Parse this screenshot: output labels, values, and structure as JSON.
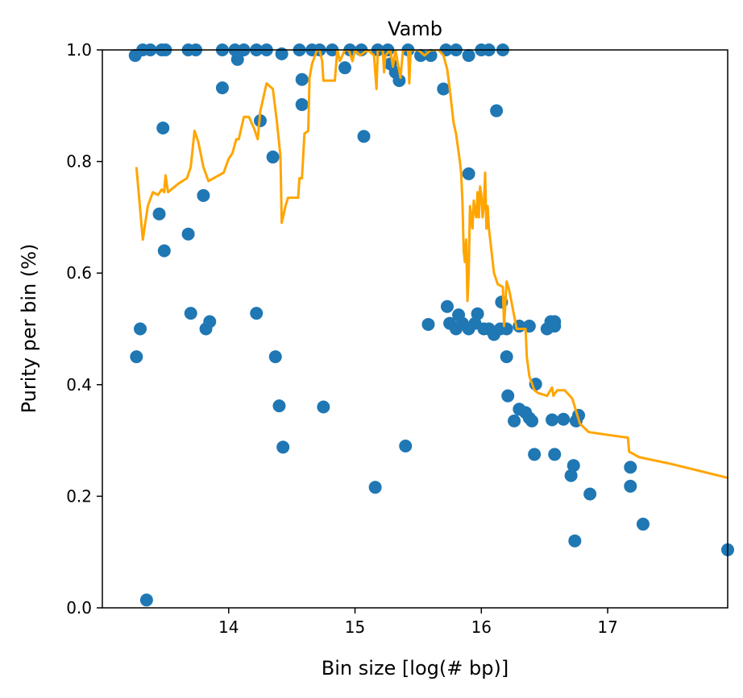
{
  "chart_data": {
    "type": "scatter",
    "title": "Vamb",
    "xlabel": "Bin size [log(# bp)]",
    "ylabel": "Purity per bin (%)",
    "xlim": [
      13.0,
      17.95
    ],
    "ylim": [
      0.0,
      1.0
    ],
    "xticks": [
      14,
      15,
      16,
      17
    ],
    "yticks": [
      0.0,
      0.2,
      0.4,
      0.6,
      0.8,
      1.0
    ],
    "xtick_labels": [
      "14",
      "15",
      "16",
      "17"
    ],
    "ytick_labels": [
      "0.0",
      "0.2",
      "0.4",
      "0.6",
      "0.8",
      "1.0"
    ],
    "grid": false,
    "series": [
      {
        "kind": "scatter",
        "color": "#1f77b4",
        "points": [
          [
            13.26,
            0.99
          ],
          [
            13.32,
            1.0
          ],
          [
            13.38,
            1.0
          ],
          [
            13.47,
            1.0
          ],
          [
            13.5,
            1.0
          ],
          [
            13.68,
            1.0
          ],
          [
            13.74,
            1.0
          ],
          [
            13.95,
            1.0
          ],
          [
            14.05,
            1.0
          ],
          [
            14.12,
            1.0
          ],
          [
            14.22,
            1.0
          ],
          [
            14.3,
            1.0
          ],
          [
            14.42,
            0.993
          ],
          [
            14.56,
            1.0
          ],
          [
            14.66,
            1.0
          ],
          [
            14.72,
            1.0
          ],
          [
            14.82,
            1.0
          ],
          [
            14.96,
            1.0
          ],
          [
            15.05,
            1.0
          ],
          [
            15.18,
            1.0
          ],
          [
            15.26,
            1.0
          ],
          [
            15.42,
            1.0
          ],
          [
            15.52,
            0.99
          ],
          [
            15.6,
            0.99
          ],
          [
            15.72,
            1.0
          ],
          [
            15.8,
            1.0
          ],
          [
            15.9,
            0.99
          ],
          [
            16.0,
            1.0
          ],
          [
            16.06,
            1.0
          ],
          [
            16.17,
            1.0
          ],
          [
            14.07,
            0.983
          ],
          [
            14.92,
            0.968
          ],
          [
            15.28,
            0.975
          ],
          [
            15.32,
            0.96
          ],
          [
            15.35,
            0.945
          ],
          [
            14.58,
            0.947
          ],
          [
            13.95,
            0.932
          ],
          [
            15.7,
            0.93
          ],
          [
            14.58,
            0.902
          ],
          [
            16.12,
            0.891
          ],
          [
            14.25,
            0.873
          ],
          [
            13.48,
            0.86
          ],
          [
            15.07,
            0.845
          ],
          [
            14.35,
            0.808
          ],
          [
            15.9,
            0.778
          ],
          [
            13.8,
            0.739
          ],
          [
            13.45,
            0.706
          ],
          [
            13.68,
            0.67
          ],
          [
            13.49,
            0.64
          ],
          [
            15.73,
            0.54
          ],
          [
            16.16,
            0.548
          ],
          [
            13.7,
            0.528
          ],
          [
            14.22,
            0.528
          ],
          [
            15.82,
            0.525
          ],
          [
            15.97,
            0.527
          ],
          [
            13.85,
            0.513
          ],
          [
            15.58,
            0.508
          ],
          [
            15.75,
            0.51
          ],
          [
            15.8,
            0.5
          ],
          [
            15.85,
            0.51
          ],
          [
            15.9,
            0.5
          ],
          [
            15.95,
            0.51
          ],
          [
            16.02,
            0.5
          ],
          [
            16.06,
            0.5
          ],
          [
            16.1,
            0.49
          ],
          [
            16.15,
            0.5
          ],
          [
            16.2,
            0.5
          ],
          [
            16.3,
            0.505
          ],
          [
            16.38,
            0.505
          ],
          [
            16.52,
            0.5
          ],
          [
            16.55,
            0.513
          ],
          [
            16.58,
            0.513
          ],
          [
            16.58,
            0.505
          ],
          [
            13.3,
            0.5
          ],
          [
            13.82,
            0.5
          ],
          [
            13.27,
            0.45
          ],
          [
            14.37,
            0.45
          ],
          [
            16.2,
            0.45
          ],
          [
            16.43,
            0.401
          ],
          [
            16.21,
            0.38
          ],
          [
            14.4,
            0.362
          ],
          [
            14.75,
            0.36
          ],
          [
            16.3,
            0.356
          ],
          [
            16.35,
            0.35
          ],
          [
            16.26,
            0.335
          ],
          [
            16.38,
            0.34
          ],
          [
            16.4,
            0.335
          ],
          [
            16.56,
            0.337
          ],
          [
            16.65,
            0.338
          ],
          [
            16.75,
            0.335
          ],
          [
            16.77,
            0.345
          ],
          [
            15.4,
            0.29
          ],
          [
            14.43,
            0.288
          ],
          [
            16.42,
            0.275
          ],
          [
            16.58,
            0.275
          ],
          [
            16.73,
            0.255
          ],
          [
            16.71,
            0.237
          ],
          [
            17.18,
            0.252
          ],
          [
            17.18,
            0.218
          ],
          [
            15.16,
            0.216
          ],
          [
            16.86,
            0.204
          ],
          [
            17.28,
            0.15
          ],
          [
            16.74,
            0.12
          ],
          [
            17.95,
            0.104
          ],
          [
            13.35,
            0.014
          ]
        ]
      },
      {
        "kind": "line",
        "color": "#ffa500",
        "points": [
          [
            13.27,
            0.79
          ],
          [
            13.32,
            0.66
          ],
          [
            13.36,
            0.72
          ],
          [
            13.4,
            0.745
          ],
          [
            13.44,
            0.74
          ],
          [
            13.47,
            0.75
          ],
          [
            13.49,
            0.745
          ],
          [
            13.5,
            0.775
          ],
          [
            13.52,
            0.745
          ],
          [
            13.6,
            0.76
          ],
          [
            13.67,
            0.77
          ],
          [
            13.7,
            0.79
          ],
          [
            13.73,
            0.855
          ],
          [
            13.76,
            0.835
          ],
          [
            13.8,
            0.79
          ],
          [
            13.84,
            0.765
          ],
          [
            13.96,
            0.78
          ],
          [
            14.0,
            0.805
          ],
          [
            14.03,
            0.815
          ],
          [
            14.06,
            0.84
          ],
          [
            14.08,
            0.84
          ],
          [
            14.12,
            0.88
          ],
          [
            14.16,
            0.88
          ],
          [
            14.2,
            0.86
          ],
          [
            14.23,
            0.84
          ],
          [
            14.25,
            0.89
          ],
          [
            14.3,
            0.94
          ],
          [
            14.35,
            0.93
          ],
          [
            14.38,
            0.875
          ],
          [
            14.41,
            0.81
          ],
          [
            14.42,
            0.69
          ],
          [
            14.45,
            0.72
          ],
          [
            14.47,
            0.735
          ],
          [
            14.55,
            0.735
          ],
          [
            14.56,
            0.77
          ],
          [
            14.58,
            0.77
          ],
          [
            14.6,
            0.85
          ],
          [
            14.63,
            0.855
          ],
          [
            14.64,
            0.95
          ],
          [
            14.66,
            0.975
          ],
          [
            14.7,
            1.0
          ],
          [
            14.72,
            1.0
          ],
          [
            14.74,
            0.98
          ],
          [
            14.75,
            0.945
          ],
          [
            14.78,
            0.945
          ],
          [
            14.84,
            0.945
          ],
          [
            14.86,
            1.0
          ],
          [
            14.88,
            0.98
          ],
          [
            14.92,
            1.0
          ],
          [
            14.95,
            1.0
          ],
          [
            14.98,
            0.98
          ],
          [
            15.0,
            1.0
          ],
          [
            15.04,
            0.99
          ],
          [
            15.1,
            1.0
          ],
          [
            15.15,
            0.99
          ],
          [
            15.17,
            0.93
          ],
          [
            15.18,
            1.0
          ],
          [
            15.22,
            1.0
          ],
          [
            15.23,
            0.96
          ],
          [
            15.24,
            0.99
          ],
          [
            15.28,
            1.0
          ],
          [
            15.3,
            0.97
          ],
          [
            15.32,
            1.0
          ],
          [
            15.36,
            0.95
          ],
          [
            15.38,
            1.0
          ],
          [
            15.42,
            1.0
          ],
          [
            15.43,
            0.94
          ],
          [
            15.44,
            1.0
          ],
          [
            15.5,
            1.0
          ],
          [
            15.55,
            0.99
          ],
          [
            15.6,
            1.0
          ],
          [
            15.66,
            1.0
          ],
          [
            15.7,
            0.99
          ],
          [
            15.73,
            0.965
          ],
          [
            15.75,
            0.93
          ],
          [
            15.78,
            0.87
          ],
          [
            15.8,
            0.85
          ],
          [
            15.83,
            0.8
          ],
          [
            15.84,
            0.78
          ],
          [
            15.85,
            0.73
          ],
          [
            15.86,
            0.64
          ],
          [
            15.87,
            0.62
          ],
          [
            15.88,
            0.66
          ],
          [
            15.89,
            0.55
          ],
          [
            15.9,
            0.6
          ],
          [
            15.91,
            0.72
          ],
          [
            15.92,
            0.7
          ],
          [
            15.93,
            0.68
          ],
          [
            15.94,
            0.73
          ],
          [
            15.95,
            0.71
          ],
          [
            15.96,
            0.7
          ],
          [
            15.97,
            0.745
          ],
          [
            15.98,
            0.7
          ],
          [
            15.99,
            0.755
          ],
          [
            16.0,
            0.74
          ],
          [
            16.01,
            0.7
          ],
          [
            16.02,
            0.72
          ],
          [
            16.03,
            0.78
          ],
          [
            16.04,
            0.68
          ],
          [
            16.05,
            0.72
          ],
          [
            16.06,
            0.68
          ],
          [
            16.07,
            0.66
          ],
          [
            16.1,
            0.6
          ],
          [
            16.13,
            0.58
          ],
          [
            16.17,
            0.575
          ],
          [
            16.18,
            0.505
          ],
          [
            16.2,
            0.585
          ],
          [
            16.22,
            0.57
          ],
          [
            16.28,
            0.5
          ],
          [
            16.35,
            0.5
          ],
          [
            16.36,
            0.45
          ],
          [
            16.38,
            0.415
          ],
          [
            16.42,
            0.39
          ],
          [
            16.45,
            0.385
          ],
          [
            16.52,
            0.38
          ],
          [
            16.56,
            0.395
          ],
          [
            16.57,
            0.38
          ],
          [
            16.6,
            0.39
          ],
          [
            16.66,
            0.39
          ],
          [
            16.72,
            0.375
          ],
          [
            16.78,
            0.33
          ],
          [
            16.85,
            0.315
          ],
          [
            17.0,
            0.31
          ],
          [
            17.16,
            0.305
          ],
          [
            17.17,
            0.28
          ],
          [
            17.25,
            0.27
          ],
          [
            17.5,
            0.258
          ],
          [
            17.95,
            0.233
          ]
        ]
      }
    ]
  }
}
